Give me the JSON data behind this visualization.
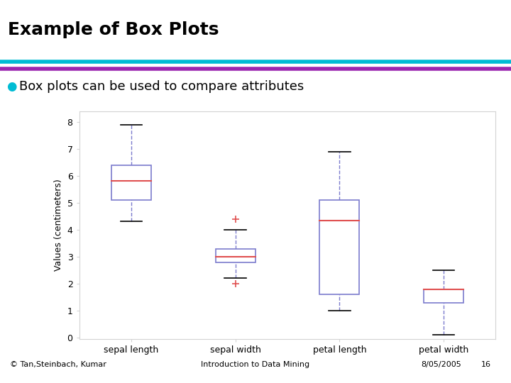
{
  "title": "Example of Box Plots",
  "subtitle": "Box plots can be used to compare attributes",
  "footer_left": "© Tan,Steinbach, Kumar",
  "footer_center": "Introduction to Data Mining",
  "footer_right": "8/05/2005",
  "footer_num": "16",
  "ylabel": "Values (centimeters)",
  "categories": [
    "sepal length",
    "sepal width",
    "petal length",
    "petal width"
  ],
  "line1_color": "#00bcd4",
  "line2_color": "#9c27b0",
  "box_color": "#7b7bcd",
  "median_color": "#e05050",
  "whisker_color": "#7b7bcd",
  "flier_color": "#e05050",
  "bullet_color": "#00bcd4",
  "sepal_length": {
    "q1": 5.1,
    "median": 5.8,
    "q3": 6.4,
    "whisker_low": 4.3,
    "whisker_high": 7.9,
    "outliers": []
  },
  "sepal_width": {
    "q1": 2.8,
    "median": 3.0,
    "q3": 3.3,
    "whisker_low": 2.2,
    "whisker_high": 4.0,
    "outliers": [
      4.4,
      2.0
    ]
  },
  "petal_length": {
    "q1": 1.6,
    "median": 4.35,
    "q3": 5.1,
    "whisker_low": 1.0,
    "whisker_high": 6.9,
    "outliers": []
  },
  "petal_width": {
    "q1": 1.3,
    "median": 1.8,
    "q3": 1.8,
    "whisker_low": 0.1,
    "whisker_high": 2.5,
    "outliers": []
  },
  "ylim": [
    -0.05,
    8.4
  ],
  "yticks": [
    0,
    1,
    2,
    3,
    4,
    5,
    6,
    7,
    8
  ],
  "background_color": "#ffffff"
}
